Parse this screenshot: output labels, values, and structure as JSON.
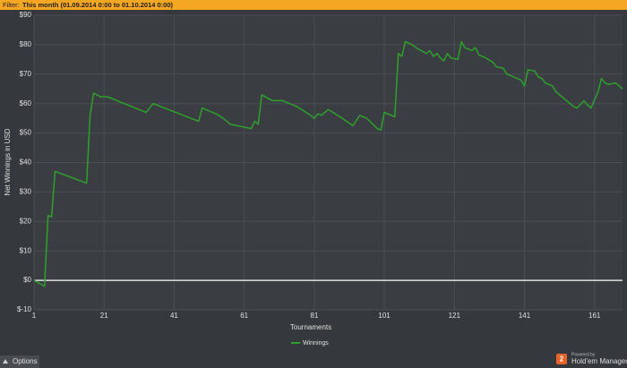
{
  "ui": {
    "filter_label": "Filter:",
    "filter_value": "This month (01.09.2014 0:00 to 01.10.2014 0:00)",
    "options": "Options",
    "powered_by": "Powered by",
    "brand": "Hold'em Manager",
    "logo_number": "2"
  },
  "chart_data": {
    "type": "line",
    "x_label": "Tournaments",
    "y_label": "Net Winnings in USD",
    "xlim": [
      1,
      169
    ],
    "xticks": [
      1,
      21,
      41,
      61,
      81,
      101,
      121,
      141,
      161
    ],
    "ylim": [
      -10,
      90
    ],
    "yticks": [
      {
        "value": 90,
        "label": "$90"
      },
      {
        "value": 80,
        "label": "$80"
      },
      {
        "value": 70,
        "label": "$70"
      },
      {
        "value": 60,
        "label": "$60"
      },
      {
        "value": 50,
        "label": "$50"
      },
      {
        "value": 40,
        "label": "$40"
      },
      {
        "value": 30,
        "label": "$30"
      },
      {
        "value": 20,
        "label": "$20"
      },
      {
        "value": 10,
        "label": "$10"
      },
      {
        "value": 0,
        "label": "$0"
      },
      {
        "value": -10,
        "label": "$-10"
      }
    ],
    "grid": true,
    "series": [
      {
        "name": "Winnings",
        "color": "#2ea02e",
        "x": [
          1,
          4,
          5,
          6,
          7,
          16,
          17,
          18,
          20,
          22,
          33,
          35,
          48,
          49,
          53,
          55,
          57,
          63,
          64,
          65,
          66,
          69,
          72,
          76,
          80,
          81,
          82,
          83,
          85,
          89,
          92,
          94,
          96,
          99,
          100,
          101,
          104,
          105,
          106,
          107,
          109,
          110,
          113,
          114,
          115,
          116,
          117,
          118,
          119,
          120,
          122,
          123,
          124,
          126,
          127,
          128,
          130,
          132,
          133,
          135,
          136,
          138,
          140,
          141,
          142,
          144,
          145,
          146,
          147,
          149,
          150,
          151,
          153,
          154,
          155,
          156,
          158,
          159,
          160,
          162,
          163,
          164,
          165,
          167,
          168,
          169
        ],
        "values": [
          0,
          -2,
          22,
          21.5,
          37,
          33,
          56,
          63.5,
          62.3,
          62.3,
          57,
          60,
          54,
          58.5,
          56.5,
          55,
          53,
          51.5,
          54,
          53,
          63,
          61,
          61,
          59,
          56,
          55,
          56.5,
          56,
          58,
          55,
          52.5,
          56,
          55,
          51.5,
          51,
          57,
          55.5,
          77,
          76,
          81,
          80,
          79,
          77,
          78,
          76,
          77,
          75.5,
          74.5,
          77,
          75.5,
          75,
          81,
          79,
          78,
          79,
          76.5,
          75.5,
          74,
          72.5,
          72,
          70,
          69,
          68,
          66,
          71.5,
          71,
          69,
          68.5,
          67,
          66,
          64,
          63,
          61,
          60,
          59,
          58.5,
          61,
          59.5,
          58.5,
          64,
          68.5,
          67,
          66.5,
          67,
          66,
          65
        ]
      }
    ]
  }
}
